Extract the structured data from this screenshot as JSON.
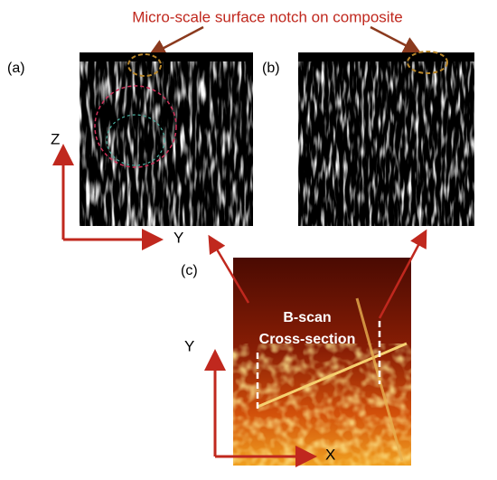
{
  "title": "Micro-scale surface notch on composite",
  "panels": {
    "a": "(a)",
    "b": "(b)",
    "c": "(c)"
  },
  "axes": {
    "a_vertical": "Z",
    "a_horizontal": "Y",
    "c_vertical": "Y",
    "c_horizontal": "X"
  },
  "annotation": [
    "B-scan",
    "Cross-section"
  ]
}
